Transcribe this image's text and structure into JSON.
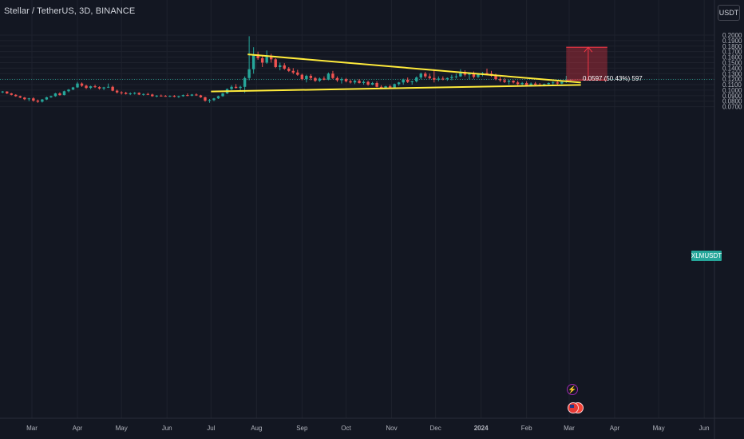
{
  "header": {
    "symbol_title": "Stellar / TetherUS, 3D, BINANCE",
    "currency_button": "USDT"
  },
  "price_tag": {
    "label": "XLMUSDT",
    "value": 0.1193
  },
  "measure": {
    "label": "0.0597 (50.43%) 597",
    "color": "#f23645"
  },
  "events": {
    "bolt_icon": "lightning-icon",
    "flag_icon": "us-flag-icon"
  },
  "colors": {
    "background": "#131722",
    "up": "#26a69a",
    "down": "#ef5350",
    "trendline": "#ffeb3b",
    "grid": "#1e222d",
    "axis_text": "#b2b5be"
  },
  "chart_data": {
    "type": "candlestick",
    "y_axis": {
      "ticks": [
        "0.2000",
        "0.1900",
        "0.1800",
        "0.1700",
        "0.1600",
        "0.1500",
        "0.1400",
        "0.1300",
        "0.1200",
        "0.1100",
        "0.1000",
        "0.0900",
        "0.0800",
        "0.0700"
      ],
      "range": [
        0.065,
        0.2045
      ]
    },
    "x_axis": {
      "ticks": [
        {
          "label": "Mar",
          "date": "2023-03-01"
        },
        {
          "label": "Apr",
          "date": "2023-04-01"
        },
        {
          "label": "May",
          "date": "2023-05-01"
        },
        {
          "label": "Jun",
          "date": "2023-06-01"
        },
        {
          "label": "Jul",
          "date": "2023-07-01"
        },
        {
          "label": "Aug",
          "date": "2023-08-01"
        },
        {
          "label": "Sep",
          "date": "2023-09-01"
        },
        {
          "label": "Oct",
          "date": "2023-10-01"
        },
        {
          "label": "Nov",
          "date": "2023-11-01"
        },
        {
          "label": "Dec",
          "date": "2023-12-01"
        },
        {
          "label": "2024",
          "date": "2024-01-01",
          "bold": true
        },
        {
          "label": "Feb",
          "date": "2024-02-01"
        },
        {
          "label": "Mar",
          "date": "2024-03-01"
        },
        {
          "label": "Apr",
          "date": "2024-04-01"
        },
        {
          "label": "May",
          "date": "2024-05-01"
        },
        {
          "label": "Jun",
          "date": "2024-06-01"
        }
      ]
    },
    "interval_days": 3,
    "start_date": "2023-01-31",
    "candles": [
      [
        0.094,
        0.0955,
        0.0915,
        0.093
      ],
      [
        0.093,
        0.096,
        0.091,
        0.0945
      ],
      [
        0.0945,
        0.0975,
        0.0935,
        0.096
      ],
      [
        0.096,
        0.0985,
        0.0945,
        0.0975
      ],
      [
        0.0975,
        0.098,
        0.093,
        0.094
      ],
      [
        0.094,
        0.095,
        0.0905,
        0.0915
      ],
      [
        0.0915,
        0.0925,
        0.088,
        0.089
      ],
      [
        0.089,
        0.09,
        0.0855,
        0.0865
      ],
      [
        0.0865,
        0.0875,
        0.082,
        0.0835
      ],
      [
        0.0835,
        0.086,
        0.08,
        0.085
      ],
      [
        0.085,
        0.087,
        0.079,
        0.081
      ],
      [
        0.081,
        0.083,
        0.077,
        0.079
      ],
      [
        0.079,
        0.084,
        0.0775,
        0.083
      ],
      [
        0.083,
        0.088,
        0.082,
        0.087
      ],
      [
        0.087,
        0.09,
        0.086,
        0.089
      ],
      [
        0.089,
        0.095,
        0.088,
        0.094
      ],
      [
        0.094,
        0.096,
        0.09,
        0.091
      ],
      [
        0.091,
        0.099,
        0.0905,
        0.098
      ],
      [
        0.098,
        0.102,
        0.096,
        0.101
      ],
      [
        0.101,
        0.106,
        0.1,
        0.105
      ],
      [
        0.105,
        0.115,
        0.104,
        0.112
      ],
      [
        0.112,
        0.114,
        0.106,
        0.108
      ],
      [
        0.108,
        0.11,
        0.102,
        0.104
      ],
      [
        0.104,
        0.108,
        0.102,
        0.107
      ],
      [
        0.107,
        0.11,
        0.104,
        0.1055
      ],
      [
        0.1055,
        0.107,
        0.101,
        0.103
      ],
      [
        0.103,
        0.106,
        0.1,
        0.105
      ],
      [
        0.105,
        0.112,
        0.104,
        0.106
      ],
      [
        0.106,
        0.108,
        0.098,
        0.099
      ],
      [
        0.099,
        0.101,
        0.094,
        0.096
      ],
      [
        0.096,
        0.098,
        0.092,
        0.095
      ],
      [
        0.095,
        0.097,
        0.092,
        0.093
      ],
      [
        0.093,
        0.096,
        0.091,
        0.094
      ],
      [
        0.094,
        0.0965,
        0.092,
        0.095
      ],
      [
        0.095,
        0.096,
        0.091,
        0.092
      ],
      [
        0.092,
        0.094,
        0.09,
        0.093
      ],
      [
        0.093,
        0.095,
        0.091,
        0.092
      ],
      [
        0.092,
        0.0935,
        0.088,
        0.089
      ],
      [
        0.089,
        0.091,
        0.087,
        0.09
      ],
      [
        0.09,
        0.092,
        0.0885,
        0.0895
      ],
      [
        0.0895,
        0.091,
        0.088,
        0.089
      ],
      [
        0.089,
        0.0905,
        0.0875,
        0.0895
      ],
      [
        0.0895,
        0.091,
        0.087,
        0.088
      ],
      [
        0.088,
        0.09,
        0.086,
        0.089
      ],
      [
        0.089,
        0.092,
        0.088,
        0.091
      ],
      [
        0.091,
        0.094,
        0.089,
        0.09
      ],
      [
        0.09,
        0.093,
        0.089,
        0.092
      ],
      [
        0.092,
        0.094,
        0.0895,
        0.0905
      ],
      [
        0.0905,
        0.0915,
        0.086,
        0.087
      ],
      [
        0.087,
        0.088,
        0.079,
        0.081
      ],
      [
        0.081,
        0.084,
        0.077,
        0.082
      ],
      [
        0.082,
        0.086,
        0.08,
        0.085
      ],
      [
        0.085,
        0.09,
        0.084,
        0.089
      ],
      [
        0.089,
        0.095,
        0.088,
        0.094
      ],
      [
        0.094,
        0.103,
        0.093,
        0.102
      ],
      [
        0.102,
        0.109,
        0.1,
        0.106
      ],
      [
        0.106,
        0.111,
        0.103,
        0.104
      ],
      [
        0.104,
        0.108,
        0.099,
        0.106
      ],
      [
        0.106,
        0.125,
        0.095,
        0.122
      ],
      [
        0.122,
        0.198,
        0.118,
        0.138
      ],
      [
        0.138,
        0.178,
        0.13,
        0.165
      ],
      [
        0.165,
        0.17,
        0.155,
        0.158
      ],
      [
        0.158,
        0.163,
        0.142,
        0.15
      ],
      [
        0.15,
        0.172,
        0.148,
        0.162
      ],
      [
        0.162,
        0.166,
        0.15,
        0.156
      ],
      [
        0.156,
        0.158,
        0.14,
        0.142
      ],
      [
        0.142,
        0.15,
        0.136,
        0.145
      ],
      [
        0.145,
        0.149,
        0.137,
        0.139
      ],
      [
        0.139,
        0.142,
        0.133,
        0.135
      ],
      [
        0.135,
        0.14,
        0.129,
        0.132
      ],
      [
        0.132,
        0.137,
        0.126,
        0.128
      ],
      [
        0.128,
        0.13,
        0.118,
        0.12
      ],
      [
        0.12,
        0.128,
        0.114,
        0.126
      ],
      [
        0.126,
        0.129,
        0.118,
        0.122
      ],
      [
        0.122,
        0.124,
        0.115,
        0.117
      ],
      [
        0.117,
        0.123,
        0.115,
        0.121
      ],
      [
        0.121,
        0.125,
        0.118,
        0.119
      ],
      [
        0.119,
        0.132,
        0.118,
        0.13
      ],
      [
        0.13,
        0.135,
        0.12,
        0.122
      ],
      [
        0.122,
        0.125,
        0.115,
        0.118
      ],
      [
        0.118,
        0.123,
        0.112,
        0.12
      ],
      [
        0.12,
        0.122,
        0.114,
        0.116
      ],
      [
        0.116,
        0.119,
        0.112,
        0.114
      ],
      [
        0.114,
        0.119,
        0.111,
        0.117
      ],
      [
        0.117,
        0.12,
        0.112,
        0.113
      ],
      [
        0.113,
        0.118,
        0.11,
        0.115
      ],
      [
        0.115,
        0.117,
        0.108,
        0.11
      ],
      [
        0.11,
        0.115,
        0.109,
        0.113
      ],
      [
        0.113,
        0.116,
        0.105,
        0.106
      ],
      [
        0.106,
        0.109,
        0.102,
        0.103
      ],
      [
        0.103,
        0.108,
        0.102,
        0.107
      ],
      [
        0.107,
        0.11,
        0.104,
        0.105
      ],
      [
        0.105,
        0.112,
        0.104,
        0.111
      ],
      [
        0.111,
        0.115,
        0.108,
        0.114
      ],
      [
        0.114,
        0.121,
        0.11,
        0.119
      ],
      [
        0.119,
        0.123,
        0.113,
        0.115
      ],
      [
        0.115,
        0.117,
        0.11,
        0.116
      ],
      [
        0.116,
        0.125,
        0.114,
        0.123
      ],
      [
        0.123,
        0.132,
        0.12,
        0.13
      ],
      [
        0.13,
        0.133,
        0.122,
        0.125
      ],
      [
        0.125,
        0.13,
        0.12,
        0.122
      ],
      [
        0.122,
        0.138,
        0.114,
        0.119
      ],
      [
        0.119,
        0.125,
        0.116,
        0.121
      ],
      [
        0.121,
        0.125,
        0.118,
        0.12
      ],
      [
        0.12,
        0.123,
        0.117,
        0.122
      ],
      [
        0.122,
        0.128,
        0.118,
        0.124
      ],
      [
        0.124,
        0.13,
        0.121,
        0.125
      ],
      [
        0.125,
        0.138,
        0.124,
        0.133
      ],
      [
        0.133,
        0.136,
        0.125,
        0.128
      ],
      [
        0.128,
        0.132,
        0.12,
        0.13
      ],
      [
        0.13,
        0.134,
        0.121,
        0.124
      ],
      [
        0.124,
        0.131,
        0.122,
        0.129
      ],
      [
        0.129,
        0.133,
        0.125,
        0.131
      ],
      [
        0.131,
        0.139,
        0.128,
        0.13
      ],
      [
        0.13,
        0.135,
        0.124,
        0.126
      ],
      [
        0.126,
        0.13,
        0.118,
        0.12
      ],
      [
        0.12,
        0.124,
        0.115,
        0.118
      ],
      [
        0.118,
        0.122,
        0.113,
        0.115
      ],
      [
        0.115,
        0.119,
        0.11,
        0.117
      ],
      [
        0.117,
        0.118,
        0.112,
        0.114
      ],
      [
        0.114,
        0.117,
        0.109,
        0.111
      ],
      [
        0.111,
        0.115,
        0.108,
        0.113
      ],
      [
        0.113,
        0.116,
        0.107,
        0.109
      ],
      [
        0.109,
        0.114,
        0.108,
        0.112
      ],
      [
        0.112,
        0.115,
        0.108,
        0.11
      ],
      [
        0.11,
        0.113,
        0.107,
        0.108
      ],
      [
        0.108,
        0.112,
        0.107,
        0.111
      ],
      [
        0.111,
        0.114,
        0.109,
        0.113
      ],
      [
        0.113,
        0.116,
        0.11,
        0.114
      ],
      [
        0.114,
        0.117,
        0.11,
        0.112
      ],
      [
        0.112,
        0.116,
        0.111,
        0.115
      ],
      [
        0.115,
        0.126,
        0.113,
        0.118
      ],
      [
        0.118,
        0.12,
        0.116,
        0.119
      ]
    ],
    "trendlines": [
      {
        "name": "upper-trendline",
        "from": [
          "2023-07-26",
          0.165
        ],
        "to": [
          "2024-03-09",
          0.1138
        ],
        "color": "#ffeb3b"
      },
      {
        "name": "lower-trendline",
        "from": [
          "2023-07-01",
          0.0975
        ],
        "to": [
          "2024-03-09",
          0.1095
        ],
        "color": "#ffeb3b"
      }
    ],
    "measure_box": {
      "from_date": "2024-02-28",
      "to_date": "2024-03-27",
      "low": 0.1183,
      "high": 0.178,
      "arrow_date": "2024-03-14"
    },
    "current_price_line": 0.1193,
    "grid": true
  }
}
